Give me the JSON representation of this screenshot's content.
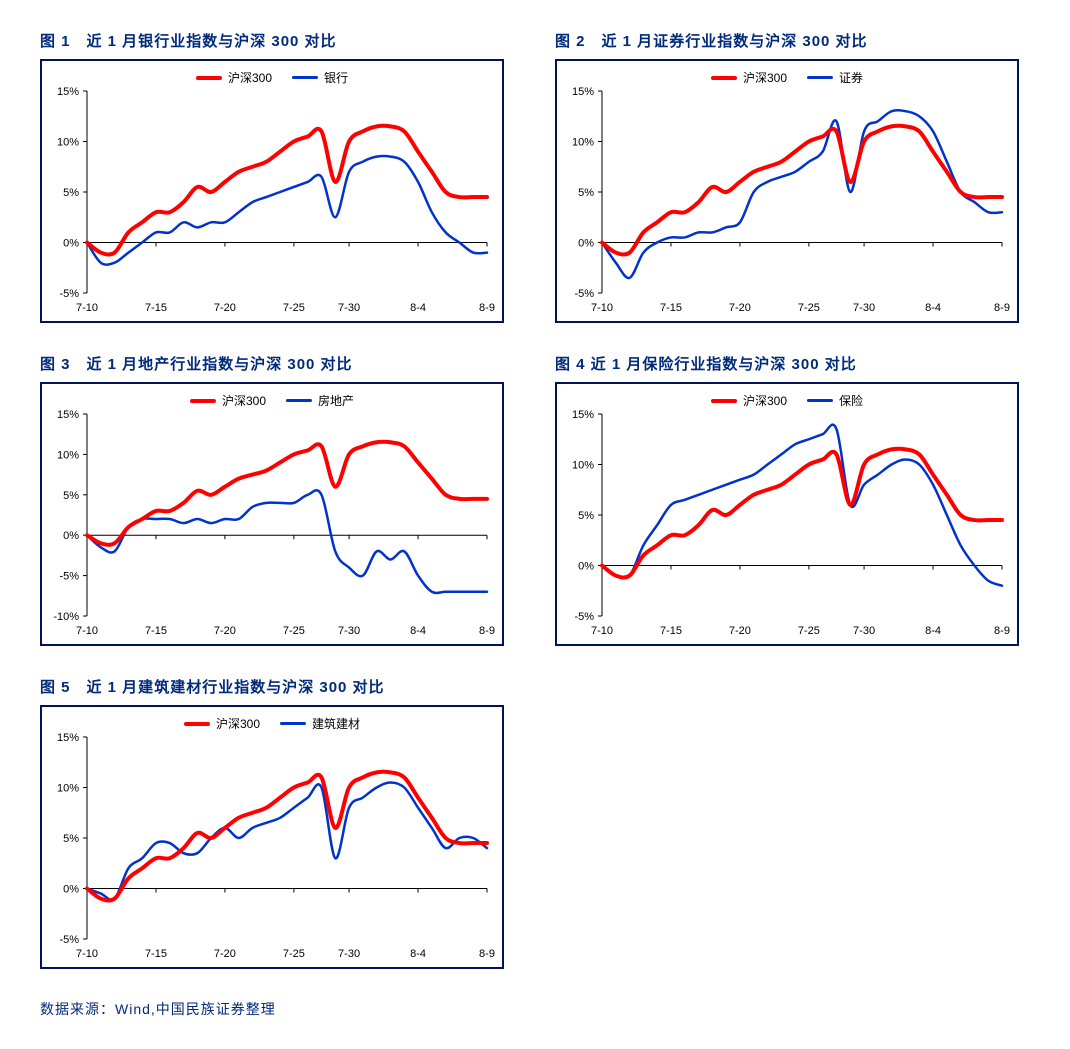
{
  "source_text": "数据来源：Wind,中国民族证券整理",
  "colors": {
    "border": "#00145e",
    "title": "#002a7a",
    "series_red": "#ff0000",
    "series_blue": "#0033cc",
    "axis": "#000000",
    "background": "#ffffff"
  },
  "line_width_red": 4,
  "line_width_blue": 2.5,
  "x_ticks": [
    "7-10",
    "7-15",
    "7-20",
    "7-25",
    "7-30",
    "8-4",
    "8-9"
  ],
  "charts": [
    {
      "id": "c1",
      "title": "图 1　近 1 月银行业指数与沪深 300 对比",
      "legend_red": "沪深300",
      "legend_blue": "银行",
      "ymin": -5,
      "ymax": 15,
      "ystep": 5,
      "red": [
        0,
        -1,
        -1,
        1,
        2,
        3,
        3,
        4,
        5.5,
        5,
        6,
        7,
        7.5,
        8,
        9,
        10,
        10.5,
        11,
        6,
        10,
        11,
        11.5,
        11.5,
        11,
        9,
        7,
        5,
        4.5,
        4.5,
        4.5
      ],
      "blue": [
        0,
        -2,
        -2,
        -1,
        0,
        1,
        1,
        2,
        1.5,
        2,
        2,
        3,
        4,
        4.5,
        5,
        5.5,
        6,
        6.5,
        2.5,
        7,
        8,
        8.5,
        8.5,
        8,
        6,
        3,
        1,
        0,
        -1,
        -1
      ]
    },
    {
      "id": "c2",
      "title": "图 2　近 1 月证券行业指数与沪深 300 对比",
      "legend_red": "沪深300",
      "legend_blue": "证券",
      "ymin": -5,
      "ymax": 15,
      "ystep": 5,
      "red": [
        0,
        -1,
        -1,
        1,
        2,
        3,
        3,
        4,
        5.5,
        5,
        6,
        7,
        7.5,
        8,
        9,
        10,
        10.5,
        11,
        6,
        10,
        11,
        11.5,
        11.5,
        11,
        9,
        7,
        5,
        4.5,
        4.5,
        4.5
      ],
      "blue": [
        0,
        -2,
        -3.5,
        -1,
        0,
        0.5,
        0.5,
        1,
        1,
        1.5,
        2,
        5,
        6,
        6.5,
        7,
        8,
        9,
        12,
        5,
        11,
        12,
        13,
        13,
        12.5,
        11,
        8,
        5,
        4,
        3,
        3
      ]
    },
    {
      "id": "c3",
      "title": "图 3　近 1 月地产行业指数与沪深 300 对比",
      "legend_red": "沪深300",
      "legend_blue": "房地产",
      "ymin": -10,
      "ymax": 15,
      "ystep": 5,
      "red": [
        0,
        -1,
        -1,
        1,
        2,
        3,
        3,
        4,
        5.5,
        5,
        6,
        7,
        7.5,
        8,
        9,
        10,
        10.5,
        11,
        6,
        10,
        11,
        11.5,
        11.5,
        11,
        9,
        7,
        5,
        4.5,
        4.5,
        4.5
      ],
      "blue": [
        0,
        -1.5,
        -2,
        1,
        2,
        2,
        2,
        1.5,
        2,
        1.5,
        2,
        2,
        3.5,
        4,
        4,
        4,
        5,
        5,
        -2,
        -4,
        -5,
        -2,
        -3,
        -2,
        -5,
        -7,
        -7,
        -7,
        -7,
        -7
      ]
    },
    {
      "id": "c4",
      "title": "图 4  近 1 月保险行业指数与沪深 300 对比",
      "legend_red": "沪深300",
      "legend_blue": "保险",
      "ymin": -5,
      "ymax": 15,
      "ystep": 5,
      "red": [
        0,
        -1,
        -1,
        1,
        2,
        3,
        3,
        4,
        5.5,
        5,
        6,
        7,
        7.5,
        8,
        9,
        10,
        10.5,
        11,
        6,
        10,
        11,
        11.5,
        11.5,
        11,
        9,
        7,
        5,
        4.5,
        4.5,
        4.5
      ],
      "blue": [
        0,
        -1,
        -1,
        2,
        4,
        6,
        6.5,
        7,
        7.5,
        8,
        8.5,
        9,
        10,
        11,
        12,
        12.5,
        13,
        13.5,
        6,
        8,
        9,
        10,
        10.5,
        10,
        8,
        5,
        2,
        0,
        -1.5,
        -2
      ]
    },
    {
      "id": "c5",
      "title": "图 5　近 1 月建筑建材行业指数与沪深 300 对比",
      "legend_red": "沪深300",
      "legend_blue": "建筑建材",
      "ymin": -5,
      "ymax": 15,
      "ystep": 5,
      "red": [
        0,
        -1,
        -1,
        1,
        2,
        3,
        3,
        4,
        5.5,
        5,
        6,
        7,
        7.5,
        8,
        9,
        10,
        10.5,
        11,
        6,
        10,
        11,
        11.5,
        11.5,
        11,
        9,
        7,
        5,
        4.5,
        4.5,
        4.5
      ],
      "blue": [
        0,
        -0.5,
        -1,
        2,
        3,
        4.5,
        4.5,
        3.5,
        3.5,
        5,
        6,
        5,
        6,
        6.5,
        7,
        8,
        9,
        10,
        3,
        8,
        9,
        10,
        10.5,
        10,
        8,
        6,
        4,
        5,
        5,
        4
      ]
    }
  ]
}
